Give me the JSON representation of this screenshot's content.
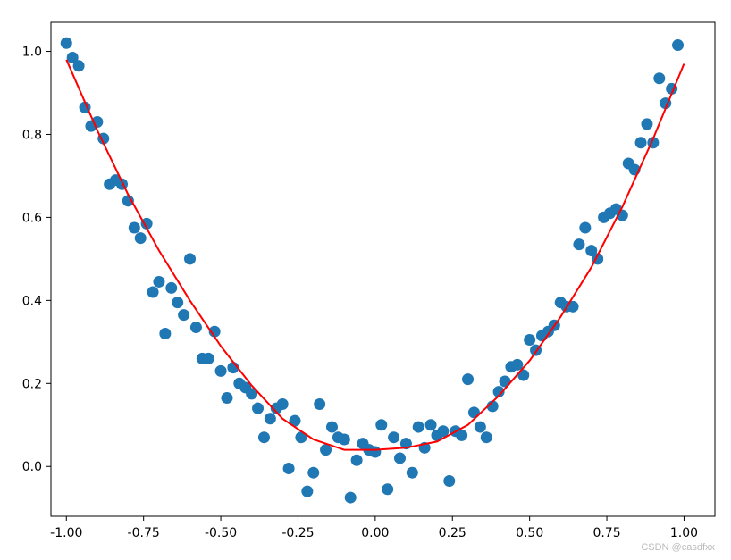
{
  "chart_data": {
    "type": "scatter",
    "title": "",
    "xlabel": "",
    "ylabel": "",
    "xlim": [
      -1.05,
      1.1
    ],
    "ylim": [
      -0.12,
      1.07
    ],
    "x_ticks": [
      -1.0,
      -0.75,
      -0.5,
      -0.25,
      0.0,
      0.25,
      0.5,
      0.75,
      1.0
    ],
    "x_tick_labels": [
      "-1.00",
      "-0.75",
      "-0.50",
      "-0.25",
      "0.00",
      "0.25",
      "0.50",
      "0.75",
      "1.00"
    ],
    "y_ticks": [
      0.0,
      0.2,
      0.4,
      0.6,
      0.8,
      1.0
    ],
    "y_tick_labels": [
      "0.0",
      "0.2",
      "0.4",
      "0.6",
      "0.8",
      "1.0"
    ],
    "grid": false,
    "series": [
      {
        "kind": "scatter",
        "color": "#1f77b4",
        "points": [
          [
            -1.0,
            1.02
          ],
          [
            -0.98,
            0.985
          ],
          [
            -0.96,
            0.965
          ],
          [
            -0.94,
            0.865
          ],
          [
            -0.92,
            0.82
          ],
          [
            -0.9,
            0.83
          ],
          [
            -0.88,
            0.79
          ],
          [
            -0.86,
            0.68
          ],
          [
            -0.84,
            0.69
          ],
          [
            -0.82,
            0.68
          ],
          [
            -0.8,
            0.64
          ],
          [
            -0.78,
            0.575
          ],
          [
            -0.76,
            0.55
          ],
          [
            -0.74,
            0.585
          ],
          [
            -0.72,
            0.42
          ],
          [
            -0.7,
            0.445
          ],
          [
            -0.68,
            0.32
          ],
          [
            -0.66,
            0.43
          ],
          [
            -0.64,
            0.395
          ],
          [
            -0.62,
            0.365
          ],
          [
            -0.6,
            0.5
          ],
          [
            -0.58,
            0.335
          ],
          [
            -0.56,
            0.26
          ],
          [
            -0.54,
            0.26
          ],
          [
            -0.52,
            0.325
          ],
          [
            -0.5,
            0.23
          ],
          [
            -0.48,
            0.165
          ],
          [
            -0.46,
            0.238
          ],
          [
            -0.44,
            0.2
          ],
          [
            -0.42,
            0.19
          ],
          [
            -0.4,
            0.175
          ],
          [
            -0.38,
            0.14
          ],
          [
            -0.36,
            0.07
          ],
          [
            -0.34,
            0.115
          ],
          [
            -0.32,
            0.14
          ],
          [
            -0.3,
            0.15
          ],
          [
            -0.28,
            -0.005
          ],
          [
            -0.26,
            0.11
          ],
          [
            -0.24,
            0.07
          ],
          [
            -0.22,
            -0.06
          ],
          [
            -0.2,
            -0.015
          ],
          [
            -0.18,
            0.15
          ],
          [
            -0.16,
            0.04
          ],
          [
            -0.14,
            0.095
          ],
          [
            -0.12,
            0.07
          ],
          [
            -0.1,
            0.065
          ],
          [
            -0.08,
            -0.075
          ],
          [
            -0.06,
            0.015
          ],
          [
            -0.04,
            0.055
          ],
          [
            -0.02,
            0.04
          ],
          [
            0.0,
            0.035
          ],
          [
            0.02,
            0.1
          ],
          [
            0.04,
            -0.055
          ],
          [
            0.06,
            0.07
          ],
          [
            0.08,
            0.02
          ],
          [
            0.1,
            0.055
          ],
          [
            0.12,
            -0.015
          ],
          [
            0.14,
            0.095
          ],
          [
            0.16,
            0.045
          ],
          [
            0.18,
            0.1
          ],
          [
            0.2,
            0.075
          ],
          [
            0.22,
            0.085
          ],
          [
            0.24,
            -0.035
          ],
          [
            0.26,
            0.085
          ],
          [
            0.28,
            0.075
          ],
          [
            0.3,
            0.21
          ],
          [
            0.32,
            0.13
          ],
          [
            0.34,
            0.095
          ],
          [
            0.36,
            0.07
          ],
          [
            0.38,
            0.145
          ],
          [
            0.4,
            0.18
          ],
          [
            0.42,
            0.205
          ],
          [
            0.44,
            0.24
          ],
          [
            0.46,
            0.245
          ],
          [
            0.48,
            0.22
          ],
          [
            0.5,
            0.305
          ],
          [
            0.52,
            0.28
          ],
          [
            0.54,
            0.315
          ],
          [
            0.56,
            0.325
          ],
          [
            0.58,
            0.34
          ],
          [
            0.6,
            0.395
          ],
          [
            0.62,
            0.385
          ],
          [
            0.64,
            0.385
          ],
          [
            0.66,
            0.535
          ],
          [
            0.68,
            0.575
          ],
          [
            0.7,
            0.52
          ],
          [
            0.72,
            0.5
          ],
          [
            0.74,
            0.6
          ],
          [
            0.76,
            0.61
          ],
          [
            0.78,
            0.62
          ],
          [
            0.8,
            0.605
          ],
          [
            0.82,
            0.73
          ],
          [
            0.84,
            0.715
          ],
          [
            0.86,
            0.78
          ],
          [
            0.88,
            0.825
          ],
          [
            0.9,
            0.78
          ],
          [
            0.92,
            0.935
          ],
          [
            0.94,
            0.875
          ],
          [
            0.96,
            0.91
          ],
          [
            0.98,
            1.015
          ]
        ]
      },
      {
        "kind": "line",
        "color": "#ff0000",
        "points": [
          [
            -1.0,
            0.98
          ],
          [
            -0.9,
            0.81
          ],
          [
            -0.8,
            0.655
          ],
          [
            -0.7,
            0.52
          ],
          [
            -0.6,
            0.4
          ],
          [
            -0.5,
            0.29
          ],
          [
            -0.4,
            0.195
          ],
          [
            -0.3,
            0.115
          ],
          [
            -0.2,
            0.065
          ],
          [
            -0.1,
            0.04
          ],
          [
            0.0,
            0.04
          ],
          [
            0.1,
            0.045
          ],
          [
            0.2,
            0.06
          ],
          [
            0.3,
            0.1
          ],
          [
            0.4,
            0.17
          ],
          [
            0.5,
            0.255
          ],
          [
            0.6,
            0.36
          ],
          [
            0.7,
            0.48
          ],
          [
            0.8,
            0.625
          ],
          [
            0.9,
            0.79
          ],
          [
            1.0,
            0.97
          ]
        ]
      }
    ]
  },
  "watermark": "CSDN @casdfxx"
}
